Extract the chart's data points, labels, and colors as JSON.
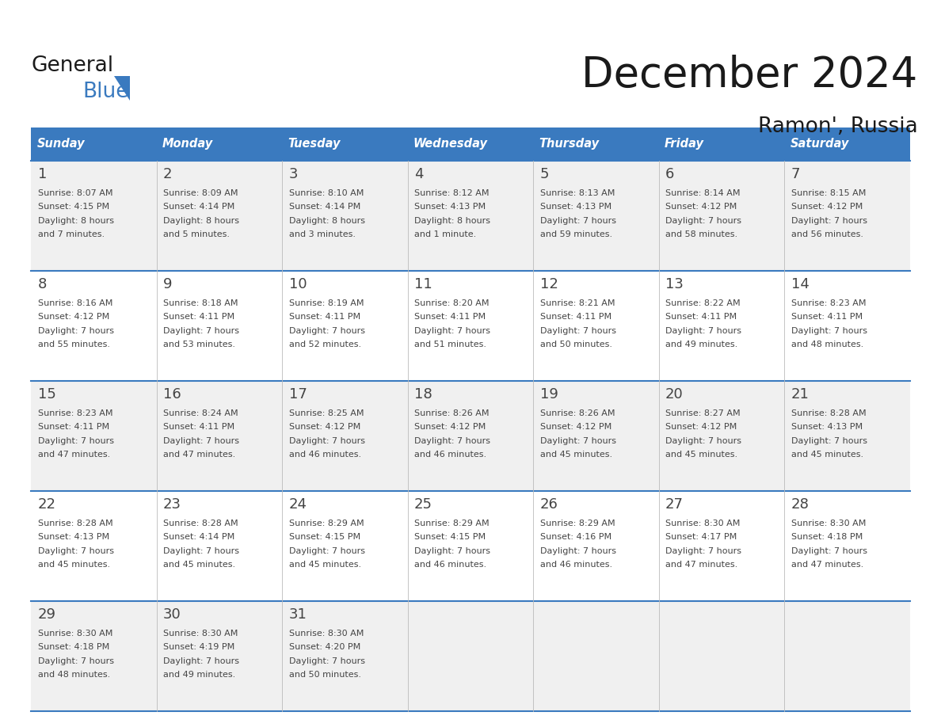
{
  "title": "December 2024",
  "subtitle": "Ramon', Russia",
  "header_color": "#3a7abf",
  "header_text_color": "#ffffff",
  "day_names": [
    "Sunday",
    "Monday",
    "Tuesday",
    "Wednesday",
    "Thursday",
    "Friday",
    "Saturday"
  ],
  "days": [
    {
      "day": 1,
      "col": 0,
      "row": 0,
      "sunrise": "8:07 AM",
      "sunset": "4:15 PM",
      "daylight": "8 hours",
      "daylight2": "and 7 minutes."
    },
    {
      "day": 2,
      "col": 1,
      "row": 0,
      "sunrise": "8:09 AM",
      "sunset": "4:14 PM",
      "daylight": "8 hours",
      "daylight2": "and 5 minutes."
    },
    {
      "day": 3,
      "col": 2,
      "row": 0,
      "sunrise": "8:10 AM",
      "sunset": "4:14 PM",
      "daylight": "8 hours",
      "daylight2": "and 3 minutes."
    },
    {
      "day": 4,
      "col": 3,
      "row": 0,
      "sunrise": "8:12 AM",
      "sunset": "4:13 PM",
      "daylight": "8 hours",
      "daylight2": "and 1 minute."
    },
    {
      "day": 5,
      "col": 4,
      "row": 0,
      "sunrise": "8:13 AM",
      "sunset": "4:13 PM",
      "daylight": "7 hours",
      "daylight2": "and 59 minutes."
    },
    {
      "day": 6,
      "col": 5,
      "row": 0,
      "sunrise": "8:14 AM",
      "sunset": "4:12 PM",
      "daylight": "7 hours",
      "daylight2": "and 58 minutes."
    },
    {
      "day": 7,
      "col": 6,
      "row": 0,
      "sunrise": "8:15 AM",
      "sunset": "4:12 PM",
      "daylight": "7 hours",
      "daylight2": "and 56 minutes."
    },
    {
      "day": 8,
      "col": 0,
      "row": 1,
      "sunrise": "8:16 AM",
      "sunset": "4:12 PM",
      "daylight": "7 hours",
      "daylight2": "and 55 minutes."
    },
    {
      "day": 9,
      "col": 1,
      "row": 1,
      "sunrise": "8:18 AM",
      "sunset": "4:11 PM",
      "daylight": "7 hours",
      "daylight2": "and 53 minutes."
    },
    {
      "day": 10,
      "col": 2,
      "row": 1,
      "sunrise": "8:19 AM",
      "sunset": "4:11 PM",
      "daylight": "7 hours",
      "daylight2": "and 52 minutes."
    },
    {
      "day": 11,
      "col": 3,
      "row": 1,
      "sunrise": "8:20 AM",
      "sunset": "4:11 PM",
      "daylight": "7 hours",
      "daylight2": "and 51 minutes."
    },
    {
      "day": 12,
      "col": 4,
      "row": 1,
      "sunrise": "8:21 AM",
      "sunset": "4:11 PM",
      "daylight": "7 hours",
      "daylight2": "and 50 minutes."
    },
    {
      "day": 13,
      "col": 5,
      "row": 1,
      "sunrise": "8:22 AM",
      "sunset": "4:11 PM",
      "daylight": "7 hours",
      "daylight2": "and 49 minutes."
    },
    {
      "day": 14,
      "col": 6,
      "row": 1,
      "sunrise": "8:23 AM",
      "sunset": "4:11 PM",
      "daylight": "7 hours",
      "daylight2": "and 48 minutes."
    },
    {
      "day": 15,
      "col": 0,
      "row": 2,
      "sunrise": "8:23 AM",
      "sunset": "4:11 PM",
      "daylight": "7 hours",
      "daylight2": "and 47 minutes."
    },
    {
      "day": 16,
      "col": 1,
      "row": 2,
      "sunrise": "8:24 AM",
      "sunset": "4:11 PM",
      "daylight": "7 hours",
      "daylight2": "and 47 minutes."
    },
    {
      "day": 17,
      "col": 2,
      "row": 2,
      "sunrise": "8:25 AM",
      "sunset": "4:12 PM",
      "daylight": "7 hours",
      "daylight2": "and 46 minutes."
    },
    {
      "day": 18,
      "col": 3,
      "row": 2,
      "sunrise": "8:26 AM",
      "sunset": "4:12 PM",
      "daylight": "7 hours",
      "daylight2": "and 46 minutes."
    },
    {
      "day": 19,
      "col": 4,
      "row": 2,
      "sunrise": "8:26 AM",
      "sunset": "4:12 PM",
      "daylight": "7 hours",
      "daylight2": "and 45 minutes."
    },
    {
      "day": 20,
      "col": 5,
      "row": 2,
      "sunrise": "8:27 AM",
      "sunset": "4:12 PM",
      "daylight": "7 hours",
      "daylight2": "and 45 minutes."
    },
    {
      "day": 21,
      "col": 6,
      "row": 2,
      "sunrise": "8:28 AM",
      "sunset": "4:13 PM",
      "daylight": "7 hours",
      "daylight2": "and 45 minutes."
    },
    {
      "day": 22,
      "col": 0,
      "row": 3,
      "sunrise": "8:28 AM",
      "sunset": "4:13 PM",
      "daylight": "7 hours",
      "daylight2": "and 45 minutes."
    },
    {
      "day": 23,
      "col": 1,
      "row": 3,
      "sunrise": "8:28 AM",
      "sunset": "4:14 PM",
      "daylight": "7 hours",
      "daylight2": "and 45 minutes."
    },
    {
      "day": 24,
      "col": 2,
      "row": 3,
      "sunrise": "8:29 AM",
      "sunset": "4:15 PM",
      "daylight": "7 hours",
      "daylight2": "and 45 minutes."
    },
    {
      "day": 25,
      "col": 3,
      "row": 3,
      "sunrise": "8:29 AM",
      "sunset": "4:15 PM",
      "daylight": "7 hours",
      "daylight2": "and 46 minutes."
    },
    {
      "day": 26,
      "col": 4,
      "row": 3,
      "sunrise": "8:29 AM",
      "sunset": "4:16 PM",
      "daylight": "7 hours",
      "daylight2": "and 46 minutes."
    },
    {
      "day": 27,
      "col": 5,
      "row": 3,
      "sunrise": "8:30 AM",
      "sunset": "4:17 PM",
      "daylight": "7 hours",
      "daylight2": "and 47 minutes."
    },
    {
      "day": 28,
      "col": 6,
      "row": 3,
      "sunrise": "8:30 AM",
      "sunset": "4:18 PM",
      "daylight": "7 hours",
      "daylight2": "and 47 minutes."
    },
    {
      "day": 29,
      "col": 0,
      "row": 4,
      "sunrise": "8:30 AM",
      "sunset": "4:18 PM",
      "daylight": "7 hours",
      "daylight2": "and 48 minutes."
    },
    {
      "day": 30,
      "col": 1,
      "row": 4,
      "sunrise": "8:30 AM",
      "sunset": "4:19 PM",
      "daylight": "7 hours",
      "daylight2": "and 49 minutes."
    },
    {
      "day": 31,
      "col": 2,
      "row": 4,
      "sunrise": "8:30 AM",
      "sunset": "4:20 PM",
      "daylight": "7 hours",
      "daylight2": "and 50 minutes."
    }
  ],
  "n_rows": 5,
  "n_cols": 7,
  "logo_text1": "General",
  "logo_text2": "Blue",
  "divider_color": "#3a7abf",
  "text_color": "#444444",
  "day_num_color": "#555555",
  "row_bg_even": "#f0f0f0",
  "row_bg_odd": "#ffffff"
}
